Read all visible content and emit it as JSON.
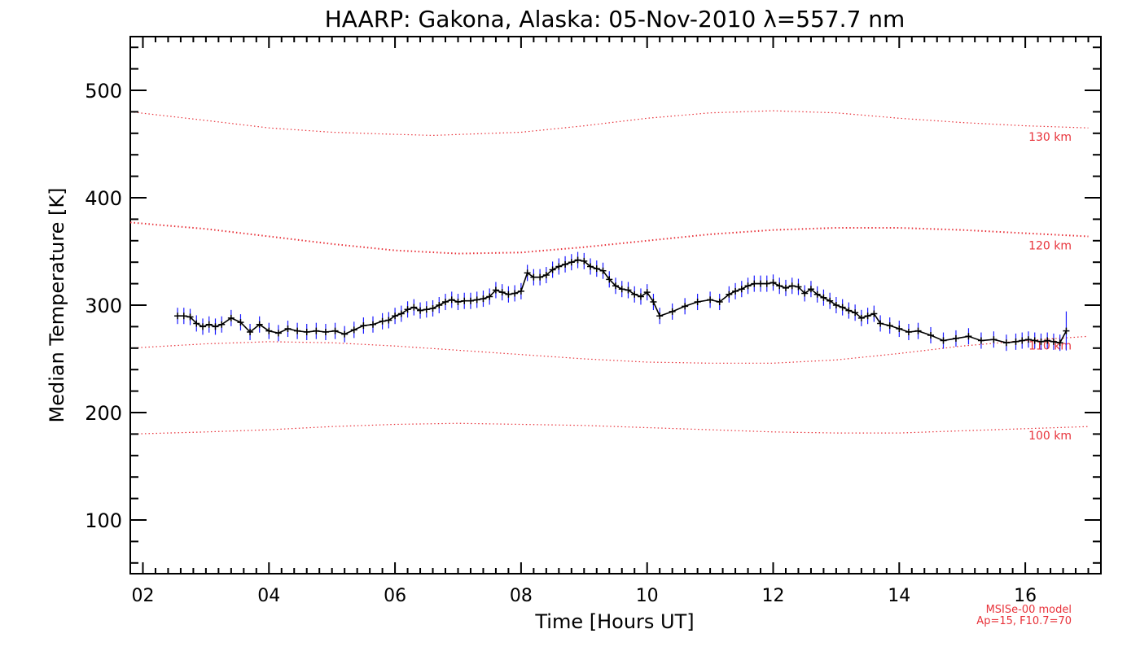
{
  "chart_data": {
    "type": "line",
    "title": "HAARP: Gakona,  Alaska: 05-Nov-2010 λ=557.7 nm",
    "xlabel": "Time [Hours UT]",
    "ylabel": "Median Temperature [K]",
    "xlim": [
      1.8,
      17.2
    ],
    "ylim": [
      50,
      550
    ],
    "x_ticks": [
      2,
      4,
      6,
      8,
      10,
      12,
      14,
      16
    ],
    "x_tick_labels": [
      "02",
      "04",
      "06",
      "08",
      "10",
      "12",
      "14",
      "16"
    ],
    "y_ticks": [
      100,
      200,
      300,
      400,
      500
    ],
    "y_tick_labels": [
      "100",
      "200",
      "300",
      "400",
      "500"
    ],
    "grid": false,
    "series": [
      {
        "role": "measurement",
        "color": "#000000",
        "errorbar_color": "#1a1aff",
        "x": [
          2.55,
          2.65,
          2.75,
          2.85,
          2.95,
          3.05,
          3.15,
          3.25,
          3.4,
          3.55,
          3.7,
          3.85,
          4.0,
          4.15,
          4.3,
          4.45,
          4.6,
          4.75,
          4.9,
          5.05,
          5.2,
          5.35,
          5.5,
          5.65,
          5.8,
          5.9,
          6.0,
          6.1,
          6.2,
          6.3,
          6.4,
          6.5,
          6.6,
          6.7,
          6.8,
          6.9,
          7.0,
          7.1,
          7.2,
          7.3,
          7.4,
          7.5,
          7.6,
          7.7,
          7.8,
          7.9,
          8.0,
          8.1,
          8.2,
          8.3,
          8.4,
          8.5,
          8.6,
          8.7,
          8.8,
          8.9,
          9.0,
          9.1,
          9.2,
          9.3,
          9.4,
          9.5,
          9.6,
          9.7,
          9.8,
          9.9,
          10.0,
          10.1,
          10.2,
          10.4,
          10.6,
          10.8,
          11.0,
          11.15,
          11.3,
          11.4,
          11.5,
          11.6,
          11.7,
          11.8,
          11.9,
          12.0,
          12.1,
          12.2,
          12.3,
          12.4,
          12.5,
          12.6,
          12.7,
          12.8,
          12.9,
          13.0,
          13.1,
          13.2,
          13.3,
          13.4,
          13.5,
          13.6,
          13.7,
          13.85,
          14.0,
          14.15,
          14.3,
          14.5,
          14.7,
          14.9,
          15.1,
          15.3,
          15.5,
          15.7,
          15.85,
          15.95,
          16.05,
          16.15,
          16.25,
          16.35,
          16.45,
          16.55,
          16.65
        ],
        "values": [
          290,
          290,
          289,
          283,
          280,
          282,
          280,
          282,
          288,
          284,
          275,
          282,
          276,
          274,
          278,
          276,
          275,
          276,
          275,
          276,
          273,
          277,
          281,
          282,
          285,
          286,
          290,
          292,
          296,
          298,
          295,
          296,
          297,
          300,
          303,
          305,
          303,
          304,
          304,
          305,
          306,
          308,
          314,
          312,
          310,
          311,
          313,
          330,
          326,
          326,
          328,
          333,
          336,
          338,
          340,
          342,
          341,
          336,
          334,
          332,
          324,
          318,
          315,
          314,
          310,
          308,
          312,
          303,
          290,
          294,
          299,
          303,
          305,
          303,
          310,
          313,
          315,
          318,
          320,
          320,
          320,
          321,
          318,
          316,
          318,
          317,
          311,
          315,
          310,
          307,
          304,
          300,
          298,
          295,
          293,
          288,
          290,
          292,
          283,
          281,
          278,
          275,
          276,
          272,
          267,
          269,
          271,
          267,
          268,
          265,
          266,
          267,
          268,
          267,
          266,
          267,
          266,
          265,
          276
        ]
      },
      {
        "role": "model",
        "label": "130 km",
        "color": "#e8323a",
        "x": [
          1.8,
          3,
          4,
          5,
          6,
          6.6,
          8,
          9,
          10,
          11,
          12,
          13,
          14,
          15,
          16,
          17
        ],
        "values": [
          480,
          472,
          465,
          461,
          459,
          458,
          461,
          467,
          474,
          479,
          481,
          479,
          474,
          470,
          467,
          465
        ]
      },
      {
        "role": "model",
        "label": "120 km",
        "color": "#e8323a",
        "x": [
          1.8,
          3,
          4,
          5,
          6,
          7,
          8,
          9,
          10,
          11,
          12,
          13,
          14,
          15,
          16,
          17
        ],
        "values": [
          377,
          371,
          364,
          357,
          351,
          348,
          349,
          354,
          360,
          366,
          370,
          372,
          372,
          370,
          367,
          364
        ]
      },
      {
        "role": "model",
        "label": "110 km",
        "color": "#e8323a",
        "x": [
          1.8,
          3,
          4,
          5,
          6,
          7,
          8,
          9,
          10,
          11,
          12,
          13,
          14,
          15,
          16,
          17
        ],
        "values": [
          260,
          264,
          266,
          265,
          262,
          258,
          254,
          250,
          247,
          246,
          246,
          249,
          255,
          262,
          267,
          271
        ]
      },
      {
        "role": "model",
        "label": "100 km",
        "color": "#e8323a",
        "x": [
          1.8,
          3,
          4,
          5,
          6,
          7,
          8,
          9,
          10,
          11,
          12,
          13,
          14,
          15,
          16,
          17
        ],
        "values": [
          180,
          182,
          184,
          187,
          189,
          190,
          189,
          188,
          186,
          184,
          182,
          181,
          181,
          183,
          185,
          187
        ]
      }
    ],
    "model_labels": [
      "130 km",
      "120 km",
      "110 km",
      "100 km"
    ],
    "annotation": {
      "line1": "MSISe-00 model",
      "line2": "Ap=15, F10.7=70"
    }
  }
}
